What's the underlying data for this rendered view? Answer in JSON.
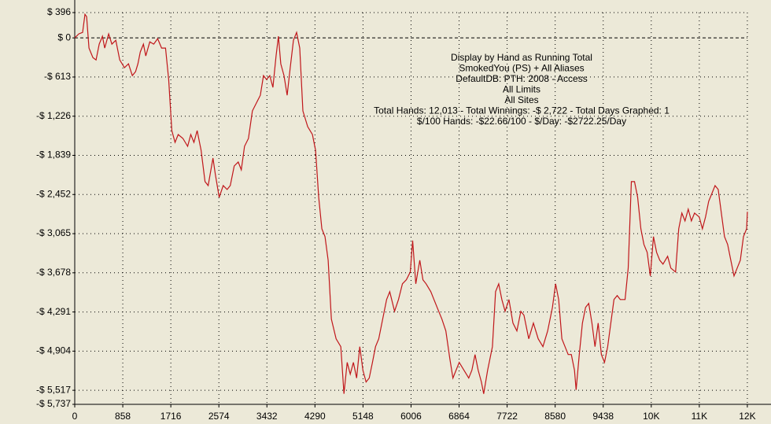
{
  "chart_data": {
    "type": "line",
    "annotations": [
      "Display by Hand as Running Total",
      "SmokedYou (PS) + All Aliases",
      "DefaultDB: PTH: 2008 - Access",
      "All Limits",
      "All Sites",
      "Total Hands: 12,013 - Total Winnings: -$ 2,722 - Total Days Graphed: 1",
      "$/100 Hands: -$22.66/100 - $/Day: -$2722.25/Day"
    ],
    "x": [
      0,
      71,
      141,
      183,
      212,
      254,
      324,
      381,
      437,
      494,
      536,
      606,
      663,
      733,
      804,
      888,
      959,
      1029,
      1086,
      1128,
      1170,
      1227,
      1269,
      1340,
      1410,
      1481,
      1551,
      1622,
      1678,
      1734,
      1791,
      1847,
      1932,
      2016,
      2073,
      2129,
      2186,
      2256,
      2327,
      2383,
      2468,
      2510,
      2580,
      2651,
      2721,
      2778,
      2848,
      2919,
      2975,
      3032,
      3102,
      3173,
      3243,
      3314,
      3370,
      3426,
      3483,
      3539,
      3596,
      3638,
      3680,
      3737,
      3793,
      3849,
      3906,
      3962,
      4019,
      4075,
      4160,
      4244,
      4301,
      4357,
      4413,
      4470,
      4526,
      4583,
      4667,
      4752,
      4808,
      4865,
      4921,
      4977,
      5034,
      5090,
      5147,
      5203,
      5259,
      5316,
      5372,
      5429,
      5513,
      5570,
      5626,
      5711,
      5781,
      5852,
      5922,
      5993,
      6035,
      6091,
      6162,
      6218,
      6275,
      6359,
      6416,
      6500,
      6557,
      6627,
      6698,
      6754,
      6810,
      6867,
      6951,
      7036,
      7092,
      7149,
      7205,
      7262,
      7304,
      7374,
      7459,
      7515,
      7572,
      7628,
      7685,
      7755,
      7826,
      7896,
      7967,
      8023,
      8108,
      8192,
      8277,
      8361,
      8446,
      8531,
      8587,
      8643,
      8700,
      8756,
      8813,
      8869,
      8925,
      8954,
      9010,
      9066,
      9123,
      9179,
      9236,
      9292,
      9348,
      9405,
      9461,
      9518,
      9574,
      9630,
      9687,
      9743,
      9828,
      9884,
      9941,
      9997,
      10053,
      10110,
      10166,
      10223,
      10279,
      10335,
      10392,
      10448,
      10505,
      10589,
      10646,
      10730,
      10787,
      10843,
      10899,
      10956,
      11012,
      11069,
      11153,
      11210,
      11266,
      11322,
      11379,
      11435,
      11492,
      11548,
      11604,
      11661,
      11717,
      11774,
      11830,
      11887,
      11943,
      11999,
      12013
    ],
    "series": [
      {
        "color": "#c0161a",
        "values": [
          0,
          62,
          86,
          369,
          332,
          -160,
          -308,
          -345,
          -98,
          25,
          -160,
          62,
          -98,
          -37,
          -345,
          -467,
          -406,
          -590,
          -529,
          -406,
          -221,
          -98,
          -283,
          -62,
          -98,
          -12,
          -160,
          -160,
          -652,
          -1451,
          -1636,
          -1513,
          -1574,
          -1697,
          -1513,
          -1636,
          -1451,
          -1759,
          -2251,
          -2312,
          -1882,
          -2128,
          -2497,
          -2312,
          -2374,
          -2312,
          -2005,
          -1943,
          -2066,
          -1697,
          -1574,
          -1144,
          -1021,
          -898,
          -590,
          -652,
          -590,
          -775,
          -283,
          25,
          -406,
          -590,
          -898,
          -467,
          -37,
          86,
          -160,
          -1144,
          -1390,
          -1513,
          -1759,
          -2497,
          -2989,
          -3112,
          -3481,
          -4403,
          -4711,
          -4834,
          -5572,
          -5080,
          -5264,
          -5080,
          -5326,
          -4834,
          -5203,
          -5387,
          -5326,
          -5080,
          -4834,
          -4711,
          -4342,
          -4096,
          -3973,
          -4280,
          -4096,
          -3850,
          -3788,
          -3665,
          -3173,
          -3850,
          -3481,
          -3788,
          -3850,
          -3973,
          -4096,
          -4280,
          -4403,
          -4588,
          -5018,
          -5326,
          -5203,
          -5080,
          -5203,
          -5326,
          -5203,
          -4957,
          -5203,
          -5387,
          -5572,
          -5203,
          -4834,
          -3973,
          -3850,
          -4096,
          -4280,
          -4096,
          -4465,
          -4588,
          -4280,
          -4342,
          -4711,
          -4465,
          -4711,
          -4834,
          -4588,
          -4219,
          -3850,
          -4096,
          -4711,
          -4834,
          -4957,
          -4957,
          -5203,
          -5510,
          -4957,
          -4465,
          -4219,
          -4157,
          -4465,
          -4834,
          -4465,
          -4957,
          -5080,
          -4834,
          -4465,
          -4096,
          -4034,
          -4096,
          -4096,
          -3604,
          -2251,
          -2251,
          -2497,
          -2989,
          -3235,
          -3358,
          -3727,
          -3112,
          -3358,
          -3481,
          -3542,
          -3419,
          -3604,
          -3665,
          -2989,
          -2743,
          -2866,
          -2681,
          -2866,
          -2743,
          -2804,
          -2989,
          -2804,
          -2558,
          -2435,
          -2312,
          -2374,
          -2743,
          -3112,
          -3235,
          -3481,
          -3727,
          -3604,
          -3481,
          -3112,
          -2989,
          -2722
        ]
      }
    ],
    "xlim": [
      0,
      12013
    ],
    "xticks": [
      0,
      858,
      1716,
      2574,
      3432,
      4290,
      5148,
      6006,
      6864,
      7722,
      8580,
      9438,
      {
        "value": 10296,
        "label": "10K"
      },
      {
        "value": 11154,
        "label": "11K"
      },
      {
        "value": 12012,
        "label": "12K"
      }
    ],
    "ylim": [
      -5737,
      396
    ],
    "yticks": [
      {
        "value": 396,
        "label": "$ 396"
      },
      {
        "value": 0,
        "label": "$ 0"
      },
      {
        "value": -613,
        "label": "-$ 613"
      },
      {
        "value": -1226,
        "label": "-$ 1,226"
      },
      {
        "value": -1839,
        "label": "-$ 1,839"
      },
      {
        "value": -2452,
        "label": "-$ 2,452"
      },
      {
        "value": -3065,
        "label": "-$ 3,065"
      },
      {
        "value": -3678,
        "label": "-$ 3,678"
      },
      {
        "value": -4291,
        "label": "-$ 4,291"
      },
      {
        "value": -4904,
        "label": "-$ 4,904"
      },
      {
        "value": -5517,
        "label": "-$ 5,517"
      },
      {
        "value": -5737,
        "label": "-$ 5,737"
      }
    ],
    "grid": true
  }
}
